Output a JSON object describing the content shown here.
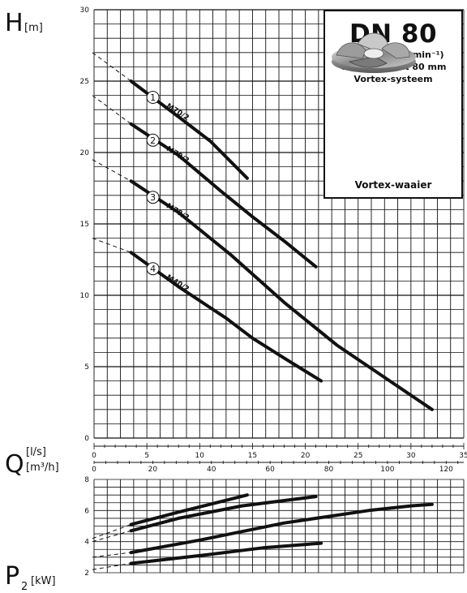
{
  "info_box": {
    "title": "DN 80",
    "line1": "2-polig (2900 min⁻¹)",
    "line2": "Vrije doorlaat 80 mm",
    "line3": "Vortex-systeem",
    "caption": "Vortex-waaier"
  },
  "axis_labels": {
    "h_letter": "H",
    "h_unit": "[m]",
    "q_letter": "Q",
    "q_unit_ls": "[l/s]",
    "q_unit_m3h": "[m³/h]",
    "p_letter": "P",
    "p_sub": "2",
    "p_unit": "[kW]"
  },
  "chart_data": [
    {
      "type": "line",
      "title": "",
      "xlabel": "Q [l/s] / [m³/h]",
      "ylabel": "H [m]",
      "xlim_ls": [
        0,
        35
      ],
      "x_ticks_ls": [
        0,
        5,
        10,
        15,
        20,
        25,
        30,
        35
      ],
      "x_ticks_m3h": [
        0,
        20,
        40,
        60,
        80,
        100,
        120
      ],
      "ylim": [
        0,
        30
      ],
      "y_ticks": [
        0,
        5,
        10,
        15,
        20,
        25,
        30
      ],
      "grid": true,
      "series": [
        {
          "name": "M70/2",
          "id": "1",
          "x": [
            3.5,
            8,
            11,
            14.5
          ],
          "y": [
            25,
            22.5,
            20.8,
            18.2
          ],
          "dashed_from": [
            0,
            27
          ]
        },
        {
          "name": "M70/2",
          "id": "2",
          "x": [
            3.5,
            8,
            12,
            15,
            18,
            21
          ],
          "y": [
            22,
            19.8,
            17.3,
            15.5,
            13.8,
            12
          ],
          "dashed_from": [
            0,
            24
          ]
        },
        {
          "name": "M70/2",
          "id": "3",
          "x": [
            3.5,
            8,
            13,
            18,
            23,
            28,
            32
          ],
          "y": [
            18,
            15.8,
            12.8,
            9.5,
            6.5,
            4,
            2
          ],
          "dashed_from": [
            0,
            19.5
          ]
        },
        {
          "name": "M40/2",
          "id": "4",
          "x": [
            3.5,
            8,
            12.5,
            15,
            18,
            21.5
          ],
          "y": [
            13,
            10.6,
            8.4,
            7,
            5.6,
            4
          ],
          "dashed_from": [
            0,
            14
          ]
        }
      ]
    },
    {
      "type": "line",
      "title": "",
      "xlabel": "Q [l/s] / [m³/h]",
      "ylabel": "P2 [kW]",
      "xlim_ls": [
        0,
        35
      ],
      "ylim": [
        2,
        8
      ],
      "y_ticks": [
        2,
        4,
        6,
        8
      ],
      "grid": true,
      "series": [
        {
          "id": "1",
          "x": [
            3.5,
            8,
            14.5
          ],
          "y": [
            5.1,
            5.9,
            7.0
          ],
          "dashed_from": [
            0,
            4.2
          ]
        },
        {
          "id": "2",
          "x": [
            3.5,
            8,
            14,
            21
          ],
          "y": [
            4.7,
            5.5,
            6.3,
            6.9
          ],
          "dashed_from": [
            0,
            4.0
          ]
        },
        {
          "id": "3",
          "x": [
            3.5,
            10,
            18,
            26,
            30,
            32
          ],
          "y": [
            3.3,
            4.1,
            5.2,
            6.0,
            6.3,
            6.4
          ],
          "dashed_from": [
            0,
            3.0
          ]
        },
        {
          "id": "4",
          "x": [
            3.5,
            10,
            16,
            21.5
          ],
          "y": [
            2.6,
            3.1,
            3.6,
            3.9
          ],
          "dashed_from": [
            0,
            2.2
          ]
        }
      ]
    }
  ]
}
